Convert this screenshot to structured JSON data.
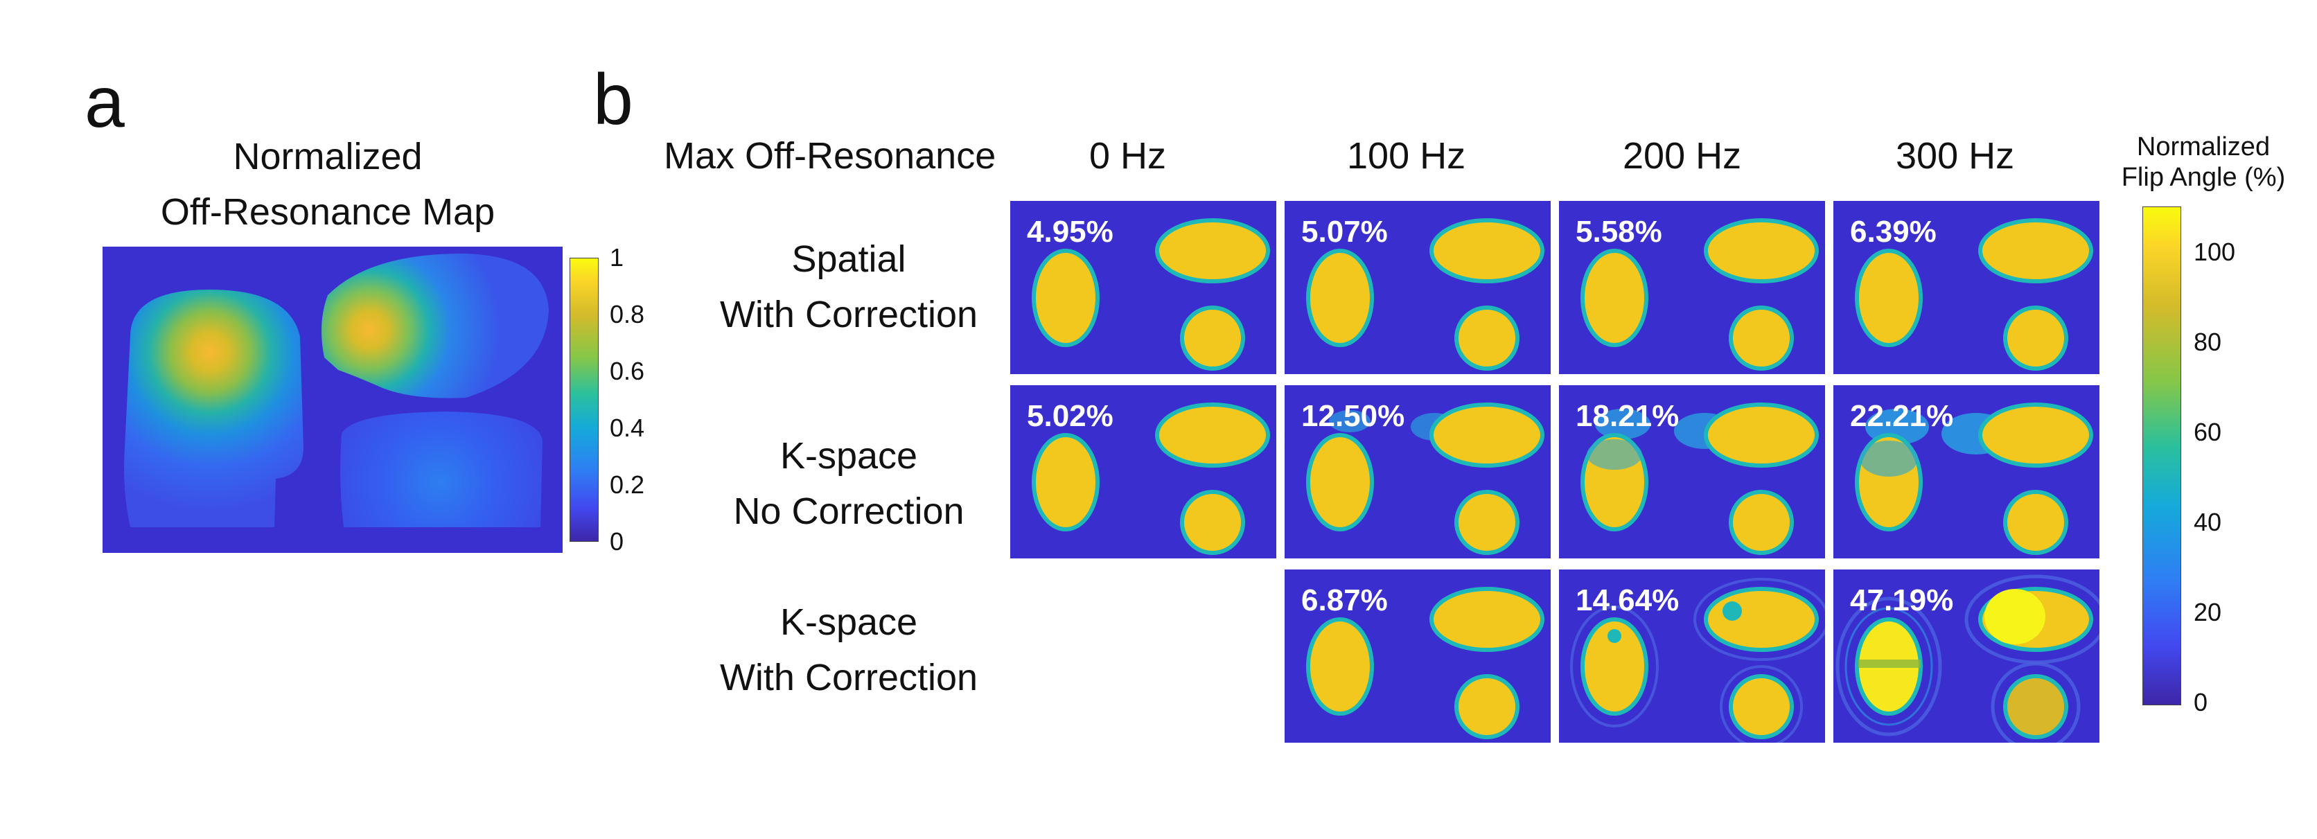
{
  "panel_a": {
    "letter": "a",
    "title_line1": "Normalized",
    "title_line2": "Off-Resonance Map",
    "colorbar_ticks": [
      "1",
      "0.8",
      "0.6",
      "0.4",
      "0.2",
      "0"
    ],
    "colormap": "parula"
  },
  "panel_b": {
    "letter": "b",
    "header_label": "Max Off-Resonance",
    "columns": [
      "0 Hz",
      "100 Hz",
      "200 Hz",
      "300 Hz"
    ],
    "rows": [
      {
        "line1": "Spatial",
        "line2": "With Correction",
        "values": [
          "4.95%",
          "5.07%",
          "5.58%",
          "6.39%"
        ]
      },
      {
        "line1": "K-space",
        "line2": "No Correction",
        "values": [
          "5.02%",
          "12.50%",
          "18.21%",
          "22.21%"
        ]
      },
      {
        "line1": "K-space",
        "line2": "With Correction",
        "values": [
          null,
          "6.87%",
          "14.64%",
          "47.19%"
        ]
      }
    ],
    "colorbar_title_line1": "Normalized",
    "colorbar_title_line2": "Flip Angle (%)",
    "colorbar_ticks": [
      "100",
      "80",
      "60",
      "40",
      "20",
      "0"
    ],
    "colors": {
      "background": "#3b2ecf",
      "phantom": "#f2c81e",
      "edge": "#1fb8b8"
    }
  }
}
